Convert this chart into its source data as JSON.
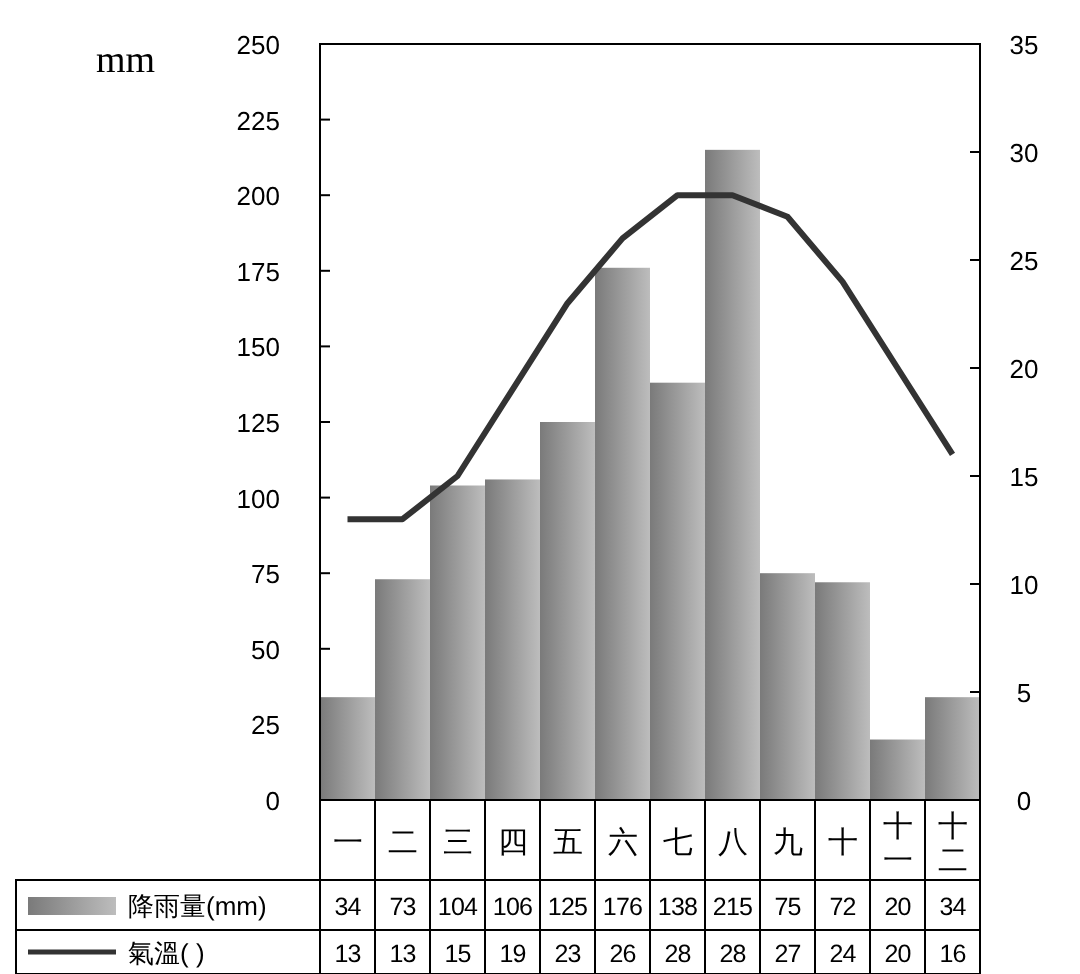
{
  "chart_data": {
    "type": "bar",
    "ylabel": "mm",
    "categories": [
      "一",
      "二",
      "三",
      "四",
      "五",
      "六",
      "七",
      "八",
      "九",
      "十",
      "十一",
      "十二"
    ],
    "series": [
      {
        "name": "降雨量(mm)",
        "color": "#7a7a7a",
        "values": [
          34,
          73,
          104,
          106,
          125,
          176,
          138,
          215,
          75,
          72,
          20,
          34
        ]
      },
      {
        "name": "氣溫(  )",
        "type": "line",
        "axis": "y2",
        "color": "#333333",
        "values": [
          13,
          13,
          15,
          19,
          23,
          26,
          28,
          28,
          27,
          24,
          20,
          16
        ]
      }
    ],
    "ylim": [
      0,
      250
    ],
    "yticks": [
      0,
      25,
      50,
      75,
      100,
      125,
      150,
      175,
      200,
      225,
      250
    ],
    "y2lim": [
      0,
      35
    ],
    "y2ticks": [
      0,
      5,
      10,
      15,
      20,
      25,
      30,
      35
    ],
    "data_labels": true,
    "legend": "bottom"
  }
}
